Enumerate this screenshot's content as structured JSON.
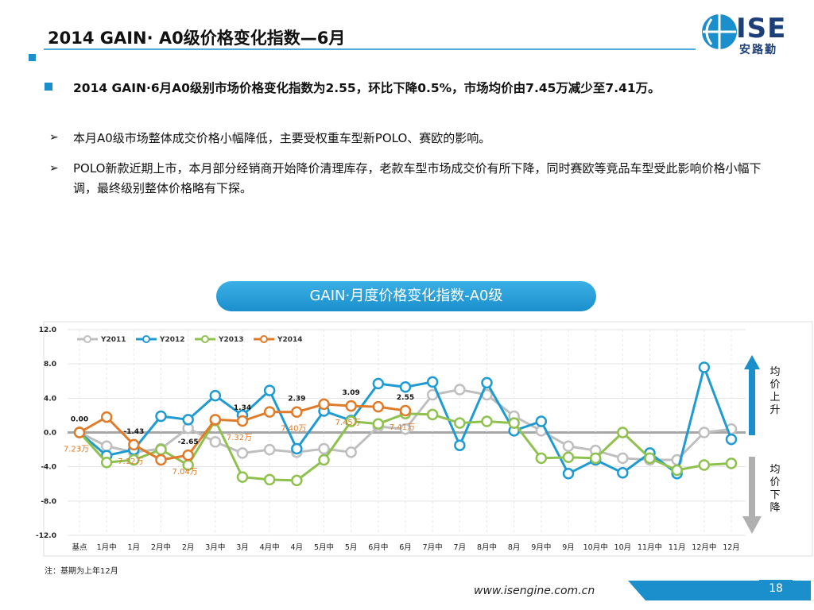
{
  "header": {
    "title": "2014 GAIN· A0级价格变化指数—6月",
    "logo": "ISE",
    "logo_sub": "安路勤"
  },
  "bullets": [
    "2014 GAIN·6月A0级别市场价格变化指数为2.55，环比下降0.5%，市场均价由7.45万减少至7.41万。",
    "本月A0级市场整体成交价格小幅降低，主要受权重车型新POLO、赛欧的影响。",
    "POLO新款近期上市，本月部分经销商开始降价清理库存，老款车型市场成交价有所下降，同时赛欧等竞品车型受此影响价格小幅下调，最终级别整体价格略有下探。"
  ],
  "chart_header": "GAIN·月度价格变化指数-A0级",
  "side_labels": [
    "均价上升",
    "均价下降"
  ],
  "note": "注：基期为上年12月",
  "footer": {
    "url": "www.isengine.com.cn",
    "page": "18"
  },
  "chart_data": {
    "type": "line",
    "categories": [
      "基点",
      "1月中",
      "1月",
      "2月中",
      "2月",
      "3月中",
      "3月",
      "4月中",
      "4月",
      "5月中",
      "5月",
      "6月中",
      "6月",
      "7月中",
      "7月",
      "8月中",
      "8月",
      "9月中",
      "9月",
      "10月中",
      "10月",
      "11月中",
      "11月",
      "12月中",
      "12月"
    ],
    "ylim": [
      -12,
      12
    ],
    "yticks": [
      {
        "value": -12,
        "label": "-12.0"
      },
      {
        "value": -8,
        "label": "-8.0"
      },
      {
        "value": -4,
        "label": "-4.0"
      },
      {
        "value": 0,
        "label": "0.0"
      },
      {
        "value": 4,
        "label": "4.0"
      },
      {
        "value": 8,
        "label": "8.0"
      },
      {
        "value": 12,
        "label": "12.0"
      }
    ],
    "grid": true,
    "legend": "top-left",
    "series": [
      {
        "name": "Y2011",
        "color": "#bfbfbf",
        "values": [
          0,
          -1.6,
          -2.3,
          -1.9,
          0.5,
          -1.1,
          -2.4,
          -2.0,
          -2.3,
          -1.9,
          -2.3,
          0.7,
          0.4,
          4.4,
          5.0,
          4.4,
          1.9,
          0.2,
          -1.6,
          -2.1,
          -3.0,
          -3.2,
          -3.2,
          0.0,
          0.4
        ]
      },
      {
        "name": "Y2012",
        "color": "#1f9bd1",
        "values": [
          0,
          -2.7,
          -2.0,
          1.9,
          1.5,
          4.3,
          2.0,
          4.9,
          -1.9,
          2.5,
          1.4,
          5.7,
          5.3,
          5.9,
          -1.5,
          5.8,
          0.2,
          1.3,
          -4.8,
          -3.2,
          -4.7,
          -2.4,
          -4.8,
          7.6,
          -0.8
        ]
      },
      {
        "name": "Y2013",
        "color": "#8fc14f",
        "values": [
          0,
          -3.5,
          -3.2,
          -2.0,
          -3.8,
          1.4,
          -5.2,
          -5.5,
          -5.6,
          -3.2,
          1.3,
          1.0,
          2.2,
          2.1,
          1.1,
          1.3,
          1.1,
          -3.0,
          -2.9,
          -3.0,
          0.0,
          -3.0,
          -4.4,
          -3.8,
          -3.6
        ]
      },
      {
        "name": "Y2014",
        "color": "#e07b2a",
        "values": [
          0,
          1.8,
          -1.43,
          -3.2,
          -2.65,
          1.5,
          1.34,
          2.4,
          2.39,
          3.3,
          3.09,
          3.0,
          2.55,
          null,
          null,
          null,
          null,
          null,
          null,
          null,
          null,
          null,
          null,
          null,
          null
        ],
        "value_labels": [
          "0.00",
          null,
          "-1.43",
          null,
          "-2.65",
          null,
          "1.34",
          null,
          "2.39",
          null,
          "3.09",
          null,
          "2.55",
          null,
          null,
          null,
          null,
          null,
          null,
          null,
          null,
          null,
          null,
          null,
          null
        ],
        "price_labels": [
          "7.23万",
          null,
          "7.12万",
          null,
          "7.04万",
          null,
          "7.32万",
          null,
          "7.40万",
          null,
          "7.45万",
          null,
          "7.41万",
          null,
          null,
          null,
          null,
          null,
          null,
          null,
          null,
          null,
          null,
          null,
          null
        ]
      }
    ]
  }
}
